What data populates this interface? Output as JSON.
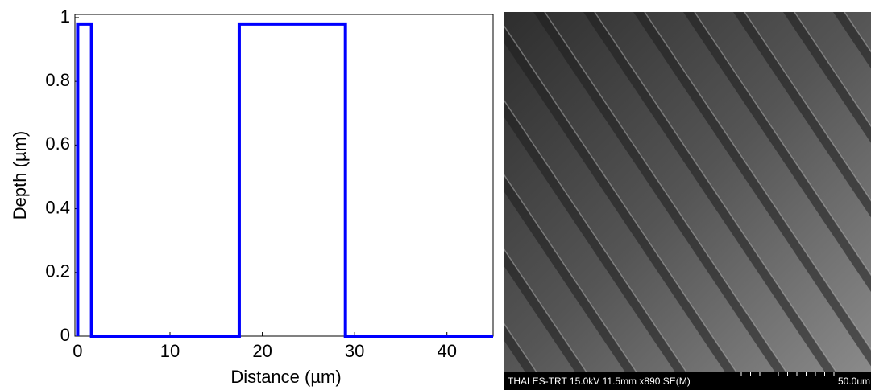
{
  "chart_data": {
    "type": "line",
    "x_label": "Distance (µm)",
    "y_label": "Depth (µm)",
    "x": [
      0,
      0,
      1.5,
      1.5,
      17.5,
      17.5,
      29,
      29,
      45
    ],
    "values": [
      0,
      0.98,
      0.98,
      0,
      0,
      0.98,
      0.98,
      0,
      0
    ],
    "color": "#0000ff",
    "xlim": [
      -0.3,
      45
    ],
    "xticks": [
      0,
      10,
      20,
      30,
      40
    ],
    "ylim": [
      0,
      1.01
    ],
    "yticks": [
      0,
      0.2,
      0.4,
      0.6,
      0.8,
      1
    ],
    "grid": false
  },
  "image": {
    "caption": "THALES-TRT 15.0kV 11.5mm x890 SE(M)",
    "scale": "50.0um"
  }
}
